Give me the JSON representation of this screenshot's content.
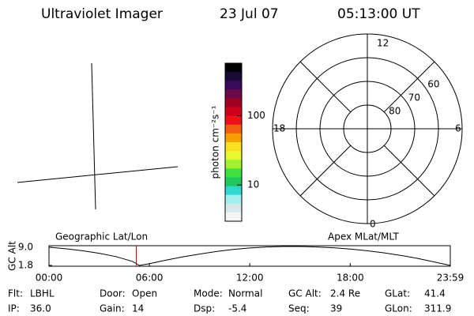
{
  "header": {
    "title": "Ultraviolet Imager",
    "date": "23 Jul 07",
    "time": "05:13:00 UT"
  },
  "colorbar": {
    "label": "photon cm⁻²s⁻¹",
    "log_scale": true,
    "lim": [
      3,
      575
    ],
    "ticks": [
      10,
      100
    ],
    "colors": [
      "#000000",
      "#1a0a3a",
      "#3a0a5a",
      "#6a0a4a",
      "#a00020",
      "#d0001a",
      "#f0101a",
      "#f06010",
      "#f8a000",
      "#f8e020",
      "#e8f830",
      "#a0f030",
      "#40e040",
      "#20c860",
      "#30d8d0",
      "#a0f0f0",
      "#d8e8e8",
      "#f4f4f4"
    ]
  },
  "polar": {
    "clock_labels": [
      "12",
      "18",
      "6",
      "0"
    ],
    "lat_labels": [
      80,
      70,
      60
    ]
  },
  "altitude_plot": {
    "type": "line",
    "ylabel": "GC Alt",
    "title_left": "Geographic Lat/Lon",
    "title_right": "Apex MLat/MLT",
    "x": [
      0,
      1,
      2,
      3,
      4,
      5,
      5.4,
      6,
      7,
      8,
      9,
      10,
      11,
      12,
      13,
      14,
      15,
      16,
      17,
      18,
      19,
      20,
      21,
      22,
      23,
      23.98
    ],
    "values": [
      9.0,
      8.4,
      7.6,
      6.6,
      5.3,
      3.4,
      1.8,
      2.5,
      3.9,
      5.2,
      6.3,
      7.3,
      8.1,
      8.7,
      9.1,
      9.3,
      9.3,
      9.1,
      8.8,
      8.3,
      7.6,
      6.8,
      5.8,
      4.6,
      3.2,
      1.8
    ],
    "color": "#000000",
    "xlim": [
      0,
      23.98
    ],
    "ylim": [
      1.5,
      9.6
    ],
    "xticks": [
      {
        "value": 0,
        "label": "00:00"
      },
      {
        "value": 6,
        "label": "06:00"
      },
      {
        "value": 12,
        "label": "12:00"
      },
      {
        "value": 18,
        "label": "18:00"
      },
      {
        "value": 23.98,
        "label": "23:59"
      }
    ],
    "yticks": [
      {
        "value": 9.0,
        "label": "9.0"
      },
      1.8
    ],
    "marker_x": 5.217,
    "marker_color": "#cc0000"
  },
  "footer": [
    [
      {
        "label": "Flt:",
        "value": "LBHL"
      },
      {
        "label": "Door:",
        "value": "Open"
      },
      {
        "label": "Mode:",
        "value": "Normal"
      },
      {
        "label": "GC Alt:",
        "value": "2.4 Re"
      },
      {
        "label": "GLat:",
        "value": "41.4"
      }
    ],
    [
      {
        "label": "IP:",
        "value": "36.0"
      },
      {
        "label": "Gain:",
        "value": "14"
      },
      {
        "label": "Dsp:",
        "value": "-5.4"
      },
      {
        "label": "Seq:",
        "value": "39"
      },
      {
        "label": "GLon:",
        "value": "311.9"
      }
    ]
  ]
}
